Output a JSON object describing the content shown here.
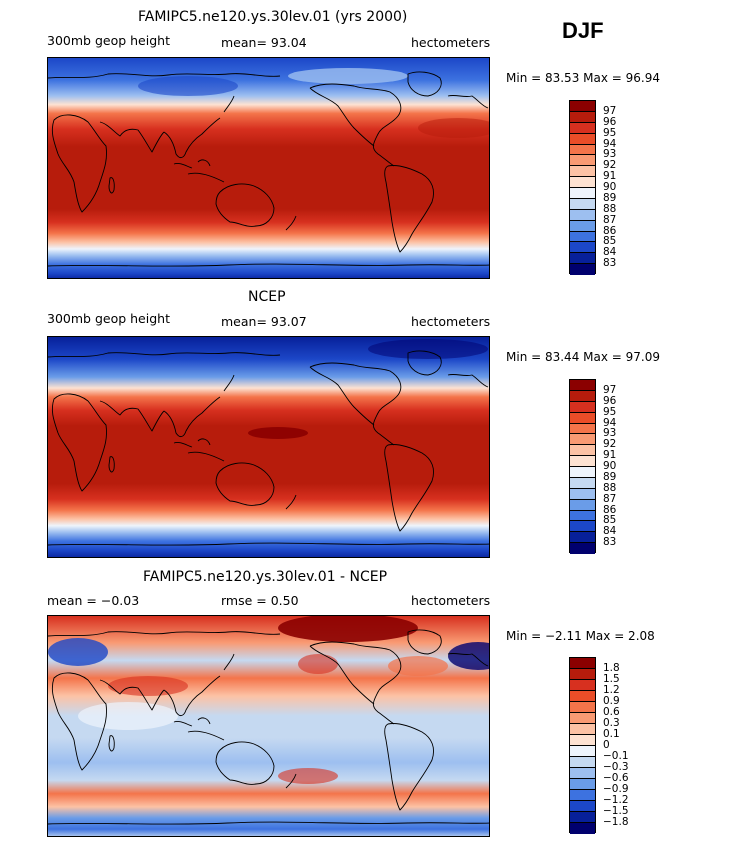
{
  "season": "DJF",
  "panels": [
    {
      "title": "FAMIPC5.ne120.ys.30lev.01 (yrs 2000)",
      "left_label": "300mb geop height",
      "stat": "mean=  93.04",
      "units": "hectometers",
      "minmax": "Min =  83.53 Max =  96.94",
      "legend": [
        "97",
        "96",
        "95",
        "94",
        "93",
        "92",
        "91",
        "90",
        "89",
        "88",
        "87",
        "86",
        "85",
        "84",
        "83"
      ],
      "colors": [
        "#8b0000",
        "#b71c0c",
        "#d7301f",
        "#ea4d28",
        "#f4744a",
        "#f99a73",
        "#fcc2a5",
        "#fde2d2",
        "#eef4fc",
        "#c5d9f1",
        "#9dbff0",
        "#6a9ce8",
        "#3d72e0",
        "#1c47c8",
        "#07209a",
        "#00006e"
      ]
    },
    {
      "title": "NCEP",
      "left_label": "300mb geop height",
      "stat": "mean=  93.07",
      "units": "hectometers",
      "minmax": "Min =  83.44 Max =  97.09",
      "legend": [
        "97",
        "96",
        "95",
        "94",
        "93",
        "92",
        "91",
        "90",
        "89",
        "88",
        "87",
        "86",
        "85",
        "84",
        "83"
      ],
      "colors": [
        "#8b0000",
        "#b71c0c",
        "#d7301f",
        "#ea4d28",
        "#f4744a",
        "#f99a73",
        "#fcc2a5",
        "#fde2d2",
        "#eef4fc",
        "#c5d9f1",
        "#9dbff0",
        "#6a9ce8",
        "#3d72e0",
        "#1c47c8",
        "#07209a",
        "#00006e"
      ]
    },
    {
      "title": "FAMIPC5.ne120.ys.30lev.01 - NCEP",
      "left_label": "mean =  −0.03",
      "stat": "rmse =   0.50",
      "units": "hectometers",
      "minmax": "Min =  −2.11 Max =   2.08",
      "legend": [
        "1.8",
        "1.5",
        "1.2",
        "0.9",
        "0.6",
        "0.3",
        "0.1",
        "0",
        "−0.1",
        "−0.3",
        "−0.6",
        "−0.9",
        "−1.2",
        "−1.5",
        "−1.8"
      ],
      "colors": [
        "#8b0000",
        "#b71c0c",
        "#d7301f",
        "#ea4d28",
        "#f4744a",
        "#f99a73",
        "#fcc2a5",
        "#fde2d2",
        "#eef4fc",
        "#c5d9f1",
        "#9dbff0",
        "#6a9ce8",
        "#3d72e0",
        "#1c47c8",
        "#07209a",
        "#00006e"
      ]
    }
  ]
}
